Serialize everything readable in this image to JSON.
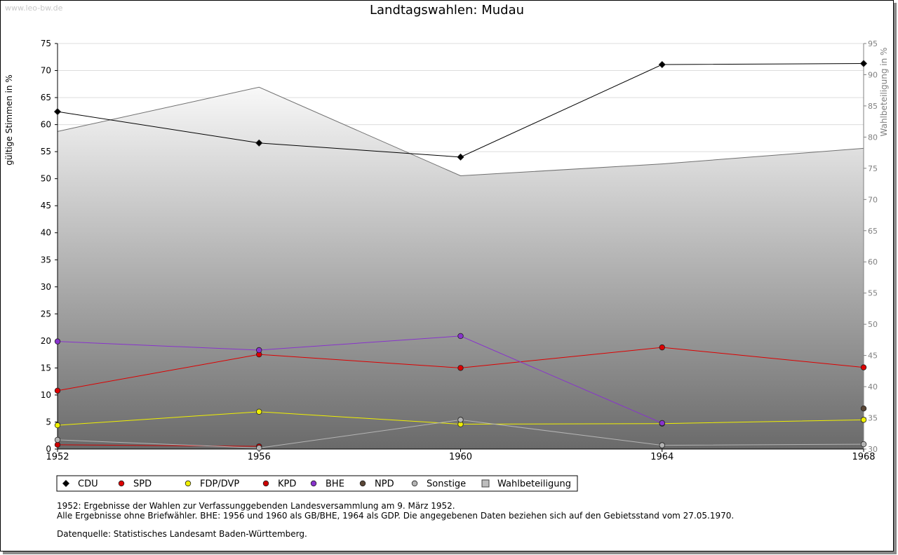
{
  "watermark": "www.leo-bw.de",
  "chart_data": {
    "type": "line",
    "title": "Landtagswahlen: Mudau",
    "ylabel": "gültige Stimmen in %",
    "y2label": "Wahlbeteiligung in %",
    "categories": [
      "1952",
      "1956",
      "1960",
      "1964",
      "1968"
    ],
    "ylim": [
      0,
      75
    ],
    "yticks": [
      "0",
      "5",
      "10",
      "15",
      "20",
      "25",
      "30",
      "35",
      "40",
      "45",
      "50",
      "55",
      "60",
      "65",
      "70",
      "75"
    ],
    "y2lim": [
      30,
      95
    ],
    "y2ticks": [
      "30",
      "35",
      "40",
      "45",
      "50",
      "55",
      "60",
      "65",
      "70",
      "75",
      "80",
      "85",
      "90",
      "95"
    ],
    "grid": true,
    "legend_position": "bottom-left",
    "turnout": {
      "name": "Wahlbeteiligung",
      "values": [
        80.9,
        88.0,
        73.8,
        75.7,
        78.2
      ],
      "color": "#808080"
    },
    "series": [
      {
        "name": "CDU",
        "color": "#000000",
        "values": [
          62.4,
          56.6,
          54.0,
          71.1,
          71.3
        ]
      },
      {
        "name": "SPD",
        "color": "#dd0000",
        "values": [
          10.8,
          17.5,
          15.0,
          18.8,
          15.1
        ]
      },
      {
        "name": "FDP/DVP",
        "color": "#f0f000",
        "values": [
          4.4,
          6.9,
          4.6,
          4.7,
          5.4
        ]
      },
      {
        "name": "KPD",
        "color": "#cc0000",
        "values": [
          0.8,
          0.5,
          null,
          null,
          null
        ]
      },
      {
        "name": "BHE",
        "color": "#8833cc",
        "values": [
          19.9,
          18.3,
          20.9,
          4.8,
          null
        ]
      },
      {
        "name": "NPD",
        "color": "#5a4636",
        "values": [
          null,
          null,
          null,
          null,
          7.5
        ]
      },
      {
        "name": "Sonstige",
        "color": "#b4b4b4",
        "values": [
          1.7,
          0.2,
          5.4,
          0.7,
          0.9
        ]
      }
    ],
    "legend": [
      "CDU",
      "SPD",
      "FDP/DVP",
      "KPD",
      "BHE",
      "NPD",
      "Sonstige",
      "Wahlbeteiligung"
    ]
  },
  "notes": [
    "1952: Ergebnisse der Wahlen zur Verfassunggebenden Landesversammlung am 9. März 1952.",
    "Alle Ergebnisse ohne Briefwähler. BHE: 1956 und 1960 als GB/BHE, 1964 als GDP. Die angegebenen Daten beziehen sich auf den Gebietsstand vom 27.05.1970."
  ],
  "source": "Datenquelle: Statistisches Landesamt Baden-Württemberg."
}
